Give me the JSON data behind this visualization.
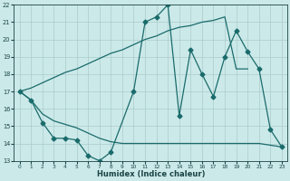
{
  "xlabel": "Humidex (Indice chaleur)",
  "background_color": "#cce9e9",
  "grid_color": "#aacccc",
  "line_color": "#1a6b6b",
  "xlim": [
    -0.5,
    23.5
  ],
  "ylim": [
    13,
    22
  ],
  "xticks": [
    0,
    1,
    2,
    3,
    4,
    5,
    6,
    7,
    8,
    9,
    10,
    11,
    12,
    13,
    14,
    15,
    16,
    17,
    18,
    19,
    20,
    21,
    22,
    23
  ],
  "yticks": [
    13,
    14,
    15,
    16,
    17,
    18,
    19,
    20,
    21,
    22
  ],
  "line1_x": [
    0,
    1,
    2,
    3,
    4,
    5,
    6,
    7,
    8,
    10,
    11,
    12,
    13,
    14,
    15,
    16,
    17,
    18,
    19,
    20,
    21,
    22,
    23
  ],
  "line1_y": [
    17.0,
    16.5,
    15.2,
    14.3,
    14.3,
    14.2,
    13.3,
    13.0,
    13.5,
    17.0,
    21.0,
    21.3,
    22.0,
    15.6,
    19.4,
    18.0,
    16.7,
    19.0,
    20.5,
    19.3,
    18.3,
    14.8,
    13.8
  ],
  "line2_x": [
    0,
    1,
    2,
    3,
    4,
    5,
    6,
    7,
    8,
    9,
    10,
    11,
    12,
    13,
    14,
    15,
    16,
    17,
    18,
    19,
    20,
    21,
    22,
    23
  ],
  "line2_y": [
    17.0,
    16.5,
    15.7,
    15.3,
    15.1,
    14.9,
    14.6,
    14.3,
    14.1,
    14.0,
    14.0,
    14.0,
    14.0,
    14.0,
    14.0,
    14.0,
    14.0,
    14.0,
    14.0,
    14.0,
    14.0,
    14.0,
    13.9,
    13.8
  ],
  "line3_x": [
    0,
    1,
    2,
    3,
    4,
    5,
    6,
    7,
    8,
    9,
    10,
    11,
    12,
    13,
    14,
    15,
    16,
    17,
    18,
    19,
    20
  ],
  "line3_y": [
    17.0,
    17.2,
    17.5,
    17.8,
    18.1,
    18.3,
    18.6,
    18.9,
    19.2,
    19.4,
    19.7,
    20.0,
    20.2,
    20.5,
    20.7,
    20.8,
    21.0,
    21.1,
    21.3,
    18.3,
    18.3
  ]
}
